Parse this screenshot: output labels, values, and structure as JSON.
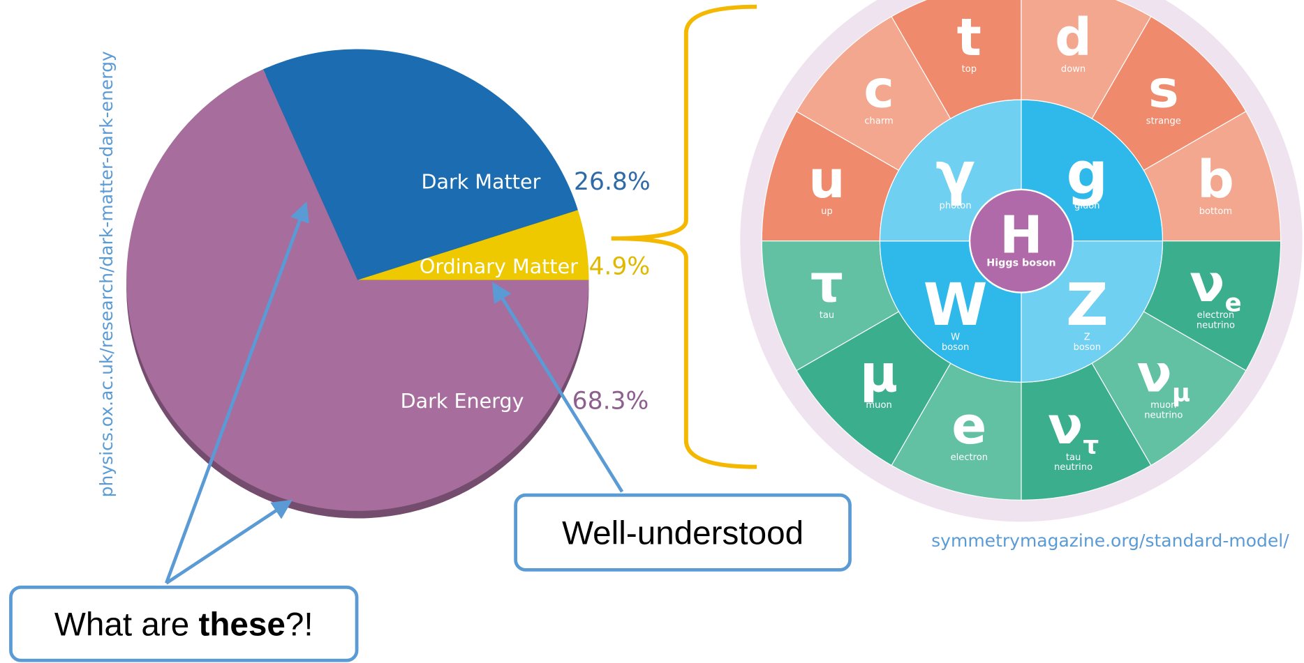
{
  "chart_data": {
    "type": "pie",
    "categories": [
      "Dark Matter",
      "Ordinary Matter",
      "Dark Energy"
    ],
    "values": [
      26.8,
      4.9,
      68.3
    ],
    "value_labels": [
      "26.8%",
      "4.9%",
      "68.3%"
    ],
    "colors": [
      "#1b6cb0",
      "#eec900",
      "#a66d9d"
    ],
    "label_colors": [
      "#2f6aa8",
      "#e0b800",
      "#8e5f8e"
    ]
  },
  "source_left": "physics.ox.ac.uk/research/dark-matter-dark-energy",
  "source_right": "symmetrymagazine.org/standard-model/",
  "callout_unknown": [
    "What are ",
    "these",
    "?!"
  ],
  "callout_known": "Well-understood",
  "quarks": [
    {
      "symbol": "u",
      "name": [
        "up"
      ]
    },
    {
      "symbol": "c",
      "name": [
        "charm"
      ]
    },
    {
      "symbol": "t",
      "name": [
        "top"
      ]
    },
    {
      "symbol": "d",
      "name": [
        "down"
      ]
    },
    {
      "symbol": "s",
      "name": [
        "strange"
      ]
    },
    {
      "symbol": "b",
      "name": [
        "bottom"
      ]
    }
  ],
  "leptons": [
    {
      "symbol": "ν",
      "sub": "e",
      "name": [
        "electron",
        "neutrino"
      ]
    },
    {
      "symbol": "ν",
      "sub": "μ",
      "name": [
        "muon",
        "neutrino"
      ]
    },
    {
      "symbol": "ν",
      "sub": "τ",
      "name": [
        "tau",
        "neutrino"
      ]
    },
    {
      "symbol": "e",
      "name": [
        "electron"
      ]
    },
    {
      "symbol": "μ",
      "name": [
        "muon"
      ]
    },
    {
      "symbol": "τ",
      "name": [
        "tau"
      ]
    }
  ],
  "bosons": [
    {
      "symbol": "g",
      "name": [
        "gluon"
      ]
    },
    {
      "symbol": "Z",
      "name": [
        "Z",
        "boson"
      ]
    },
    {
      "symbol": "W",
      "name": [
        "W",
        "boson"
      ]
    },
    {
      "symbol": "γ",
      "name": [
        "photon"
      ]
    }
  ],
  "higgs": {
    "symbol": "H",
    "name": "Higgs boson"
  }
}
